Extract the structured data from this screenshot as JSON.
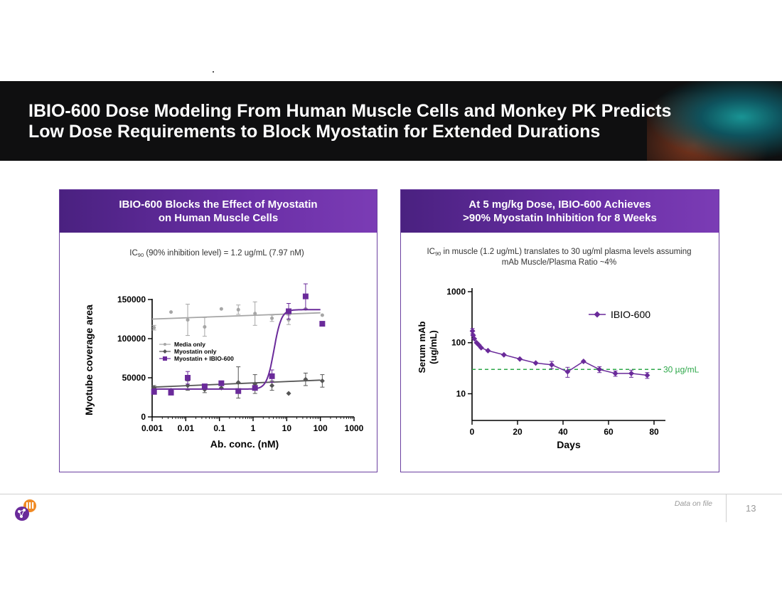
{
  "slide": {
    "title_line1": "IBIO-600 Dose Modeling From Human Muscle Cells and Monkey PK Predicts",
    "title_line2": "Low Dose Requirements to Block Myostatin for Extended Durations",
    "source": "Data on file",
    "page_number": "13"
  },
  "left_panel": {
    "header_line1": "IBIO-600  Blocks the Effect of Myostatin",
    "header_line2": "on Human Muscle Cells",
    "note_pre": "IC",
    "note_sub": "90",
    "note_post": " (90% inhibition level) = 1.2 ug/mL (7.97 nM)"
  },
  "right_panel": {
    "header_line1": "At 5 mg/kg Dose, IBIO-600 Achieves",
    "header_line2": ">90% Myostatin Inhibition for 8 Weeks",
    "note_pre": "IC",
    "note_sub": "90",
    "note_post": " in muscle (1.2 ug/mL) translates to 30 ug/ml plasma levels assuming",
    "note_line2": "mAb Muscle/Plasma Ratio ~4%"
  },
  "colors": {
    "media": "#a6a6a6",
    "myostatin": "#555555",
    "ibio": "#6a2a9a",
    "threshold": "#2ea84a",
    "title_band": "#0f0f10",
    "panel_border": "#6b3fa0"
  },
  "chart_data": [
    {
      "type": "scatter",
      "xscale": "log",
      "xlabel": "Ab. conc. (nM)",
      "ylabel": "Myotube coverage area",
      "xlim": [
        0.001,
        1000
      ],
      "ylim": [
        0,
        160000
      ],
      "xticks": [
        0.001,
        0.01,
        0.1,
        1,
        10,
        100,
        1000
      ],
      "xtick_labels": [
        "0.001",
        "0.01",
        "0.1",
        "1",
        "10",
        "100",
        "1000"
      ],
      "yticks": [
        0,
        50000,
        100000,
        150000
      ],
      "ytick_labels": [
        "0",
        "50000",
        "100000",
        "150000"
      ],
      "series": [
        {
          "name": "Media only",
          "marker": "circle",
          "x": [
            0.00114,
            0.00364,
            0.0114,
            0.0364,
            0.114,
            0.364,
            1.14,
            3.64,
            11.4,
            36.4,
            114
          ],
          "y": [
            114000,
            134000,
            124000,
            115000,
            138000,
            137000,
            132000,
            126000,
            124000,
            138000,
            130000
          ],
          "err": [
            3000,
            0,
            20000,
            12000,
            0,
            6000,
            15000,
            4000,
            6000,
            0,
            0
          ],
          "fit": [
            [
              0.001,
              125000
            ],
            [
              100,
              133000
            ]
          ]
        },
        {
          "name": "Myostatin only",
          "marker": "diamond",
          "x": [
            0.00114,
            0.00364,
            0.0114,
            0.0364,
            0.114,
            0.364,
            1.14,
            3.64,
            11.4,
            36.4,
            114
          ],
          "y": [
            37000,
            34000,
            40000,
            35000,
            37000,
            44000,
            42000,
            40000,
            30000,
            48000,
            46000
          ],
          "err": [
            3000,
            0,
            6000,
            4000,
            0,
            20000,
            12000,
            6000,
            0,
            8000,
            8000
          ],
          "fit": [
            [
              0.001,
              38000
            ],
            [
              100,
              47000
            ]
          ]
        },
        {
          "name": "Myostatin + IBIO-600",
          "marker": "square",
          "x": [
            0.00114,
            0.00364,
            0.0114,
            0.0364,
            0.114,
            0.364,
            1.14,
            3.64,
            11.4,
            36.4,
            114
          ],
          "y": [
            32000,
            31000,
            50000,
            39000,
            43000,
            33000,
            37000,
            52000,
            135000,
            154000,
            119000
          ],
          "err": [
            0,
            0,
            8000,
            0,
            0,
            0,
            0,
            8000,
            10000,
            16000,
            0
          ],
          "fit_sigmoid": {
            "bottom": 35500,
            "top": 137000,
            "ec50": 4.2,
            "hill": 4
          }
        }
      ]
    },
    {
      "type": "line",
      "yscale": "log",
      "xlabel": "Days",
      "ylabel": "Serum mAb\n(ug/mL)",
      "ylabel_line1": "Serum mAb",
      "ylabel_line2": "(ug/mL)",
      "xlim": [
        0,
        85
      ],
      "ylim": [
        3,
        1000
      ],
      "xticks": [
        0,
        20,
        40,
        60,
        80
      ],
      "xtick_labels": [
        "0",
        "20",
        "40",
        "60",
        "80"
      ],
      "yticks": [
        10,
        100,
        1000
      ],
      "ytick_labels": [
        "10",
        "100",
        "1000"
      ],
      "series": [
        {
          "name": "IBIO-600",
          "marker": "diamond",
          "x": [
            0.2,
            0.5,
            1,
            2,
            3,
            4,
            7,
            14,
            21,
            28,
            35,
            42,
            49,
            56,
            63,
            70,
            77
          ],
          "y": [
            170,
            140,
            120,
            100,
            90,
            80,
            70,
            58,
            48,
            40,
            37,
            27,
            43,
            30,
            25,
            25,
            23
          ],
          "err": [
            20,
            0,
            0,
            0,
            0,
            0,
            0,
            0,
            0,
            0,
            6,
            6,
            0,
            4,
            3,
            4,
            3
          ]
        }
      ],
      "threshold": {
        "value": 30,
        "label": "30 µg/mL"
      }
    }
  ]
}
